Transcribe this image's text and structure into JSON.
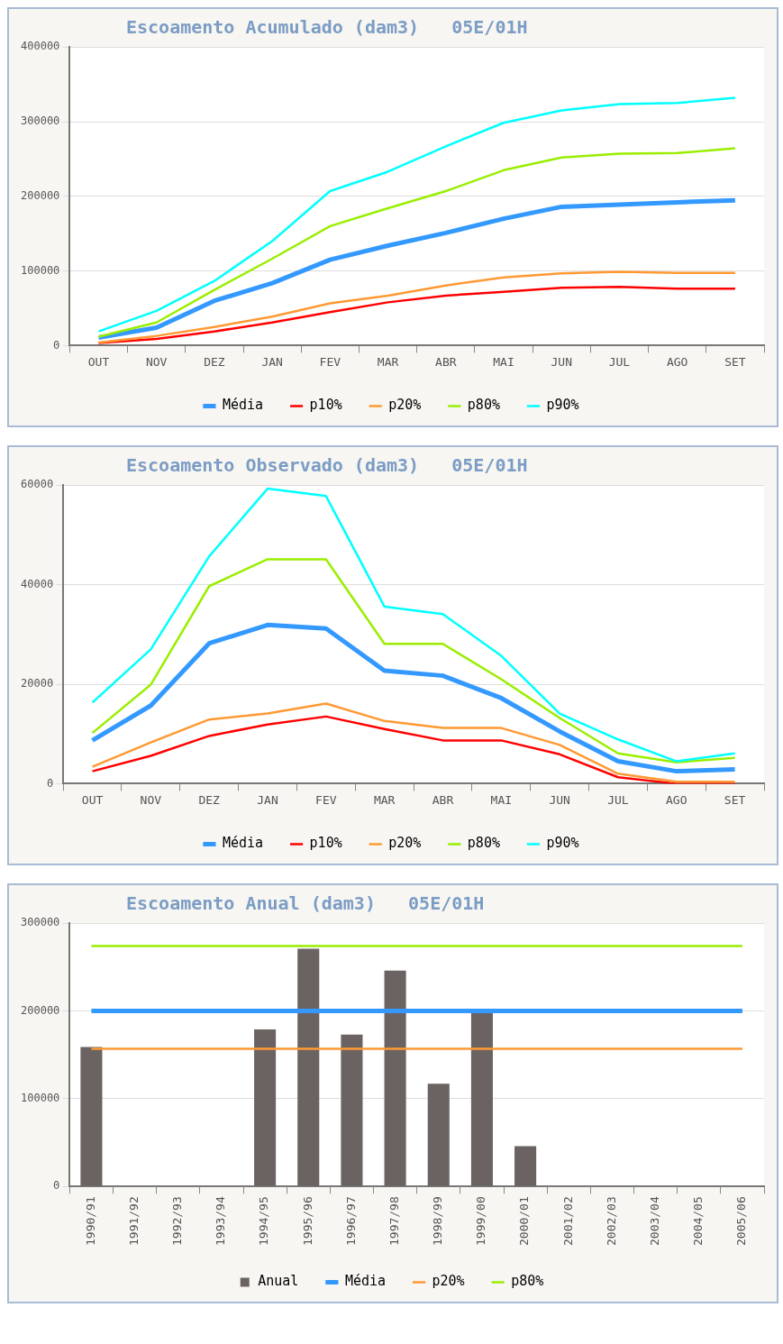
{
  "chart_data": [
    {
      "type": "line",
      "title": "Escoamento Acumulado (dam3)   05E/01H",
      "categories": [
        "OUT",
        "NOV",
        "DEZ",
        "JAN",
        "FEV",
        "MAR",
        "ABR",
        "MAI",
        "JUN",
        "JUL",
        "AGO",
        "SET"
      ],
      "series": [
        {
          "name": "Média",
          "color": "#3399ff",
          "values": [
            10700,
            24000,
            60000,
            83600,
            115000,
            134000,
            151000,
            170000,
            186000,
            189000,
            192000,
            194600
          ]
        },
        {
          "name": "p10%",
          "color": "#ff0000",
          "values": [
            3600,
            9000,
            19000,
            31000,
            44800,
            58000,
            67000,
            72000,
            77600,
            78800,
            76400,
            76400
          ]
        },
        {
          "name": "p20%",
          "color": "#ff9933",
          "values": [
            4000,
            13000,
            25000,
            38800,
            56700,
            67000,
            80600,
            91300,
            96700,
            99000,
            97300,
            97300
          ]
        },
        {
          "name": "p80%",
          "color": "#99ee00",
          "values": [
            12000,
            31000,
            74600,
            116400,
            160000,
            184000,
            207000,
            235000,
            252000,
            257000,
            258000,
            264500
          ]
        },
        {
          "name": "p90%",
          "color": "#00ffff",
          "values": [
            19100,
            46600,
            86600,
            140000,
            207000,
            233000,
            267000,
            298500,
            315000,
            323600,
            325000,
            332000
          ]
        }
      ],
      "ylim": [
        0,
        400000
      ],
      "yticks": [
        0,
        100000,
        200000,
        300000,
        400000
      ],
      "grid": "y",
      "legend": "bottom",
      "marker": "none",
      "line_style": "solid"
    },
    {
      "type": "line",
      "title": "Escoamento Observado (dam3)   05E/01H",
      "categories": [
        "OUT",
        "NOV",
        "DEZ",
        "JAN",
        "FEV",
        "MAR",
        "ABR",
        "MAI",
        "JUN",
        "JUL",
        "AGO",
        "SET"
      ],
      "series": [
        {
          "name": "Média",
          "color": "#3399ff",
          "values": [
            8700,
            15700,
            28200,
            31900,
            31200,
            22700,
            21700,
            17200,
            10500,
            4500,
            2500,
            2900
          ]
        },
        {
          "name": "p10%",
          "color": "#ff0000",
          "values": [
            2500,
            5600,
            9600,
            11900,
            13500,
            11000,
            8700,
            8700,
            5900,
            1300,
            0,
            0
          ]
        },
        {
          "name": "p20%",
          "color": "#ff9933",
          "values": [
            3400,
            8300,
            12900,
            14100,
            16100,
            12600,
            11200,
            11200,
            7800,
            2000,
            400,
            400
          ]
        },
        {
          "name": "p80%",
          "color": "#99ee00",
          "values": [
            10200,
            19900,
            39700,
            45100,
            45100,
            28100,
            28100,
            21000,
            13200,
            6100,
            4300,
            5200
          ]
        },
        {
          "name": "p90%",
          "color": "#00ffff",
          "values": [
            16300,
            27000,
            45700,
            59300,
            57800,
            35600,
            34100,
            25700,
            14100,
            8900,
            4500,
            6100
          ]
        }
      ],
      "ylim": [
        0,
        60000
      ],
      "yticks": [
        0,
        20000,
        40000,
        60000
      ],
      "grid": "y",
      "legend": "bottom",
      "marker": "none",
      "line_style": "solid"
    },
    {
      "type": "bar",
      "title": "Escoamento Anual (dam3)   05E/01H",
      "categories": [
        "1990/91",
        "1991/92",
        "1992/93",
        "1993/94",
        "1994/95",
        "1995/96",
        "1996/97",
        "1997/98",
        "1998/99",
        "1999/00",
        "2000/01",
        "2001/02",
        "2002/03",
        "2003/04",
        "2004/05",
        "2005/06"
      ],
      "series": [
        {
          "name": "Anual",
          "type": "bar",
          "color": "#6b6361",
          "values": [
            159000,
            null,
            null,
            null,
            179000,
            271000,
            173000,
            246000,
            117000,
            198000,
            46000,
            null,
            null,
            null,
            null,
            null
          ]
        },
        {
          "name": "Média",
          "type": "line",
          "color": "#3399ff",
          "values": [
            200000,
            200000,
            200000,
            200000,
            200000,
            200000,
            200000,
            200000,
            200000,
            200000,
            200000,
            200000,
            200000,
            200000,
            200000,
            200000
          ]
        },
        {
          "name": "p20%",
          "type": "line",
          "color": "#ff9933",
          "values": [
            157000,
            157000,
            157000,
            157000,
            157000,
            157000,
            157000,
            157000,
            157000,
            157000,
            157000,
            157000,
            157000,
            157000,
            157000,
            157000
          ]
        },
        {
          "name": "p80%",
          "type": "line",
          "color": "#99ee00",
          "values": [
            274000,
            274000,
            274000,
            274000,
            274000,
            274000,
            274000,
            274000,
            274000,
            274000,
            274000,
            274000,
            274000,
            274000,
            274000,
            274000
          ]
        }
      ],
      "ylim": [
        0,
        300000
      ],
      "yticks": [
        0,
        100000,
        200000,
        300000
      ],
      "grid": "y",
      "legend": "bottom",
      "marker": "none",
      "line_style": "solid"
    }
  ]
}
